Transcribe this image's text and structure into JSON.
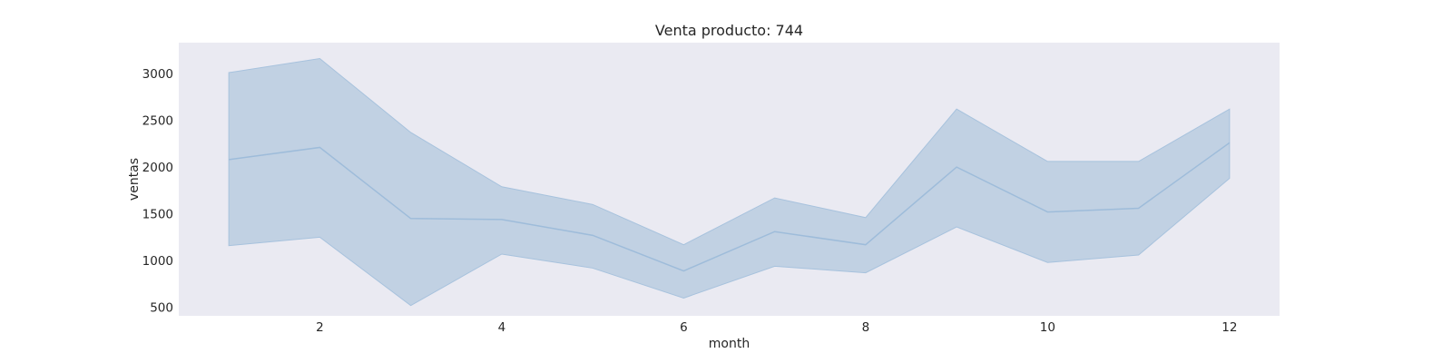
{
  "chart_data": {
    "type": "line",
    "title": "Venta producto: 744",
    "xlabel": "month",
    "ylabel": "ventas",
    "xlim": [
      0.45,
      12.55
    ],
    "ylim": [
      410,
      3330
    ],
    "x_ticks": [
      2,
      4,
      6,
      8,
      10,
      12
    ],
    "y_ticks": [
      500,
      1000,
      1500,
      2000,
      2500,
      3000
    ],
    "grid": false,
    "colors": {
      "plot_background": "#eaeaf2",
      "line": "#9ebcda",
      "band_fill": "#c1d1e3",
      "band_edge": "#a7c2dd"
    },
    "series": [
      {
        "x": [
          1,
          2,
          3,
          4,
          5,
          6,
          7,
          8,
          9,
          10,
          11,
          12
        ],
        "mean": [
          2080,
          2210,
          1450,
          1440,
          1270,
          890,
          1310,
          1170,
          2000,
          1520,
          1560,
          2260
        ],
        "ci_upper": [
          3010,
          3160,
          2370,
          1790,
          1600,
          1170,
          1670,
          1460,
          2620,
          2060,
          2060,
          2620
        ],
        "ci_lower": [
          1160,
          1250,
          520,
          1070,
          920,
          600,
          940,
          870,
          1360,
          980,
          1060,
          1880
        ]
      }
    ]
  }
}
